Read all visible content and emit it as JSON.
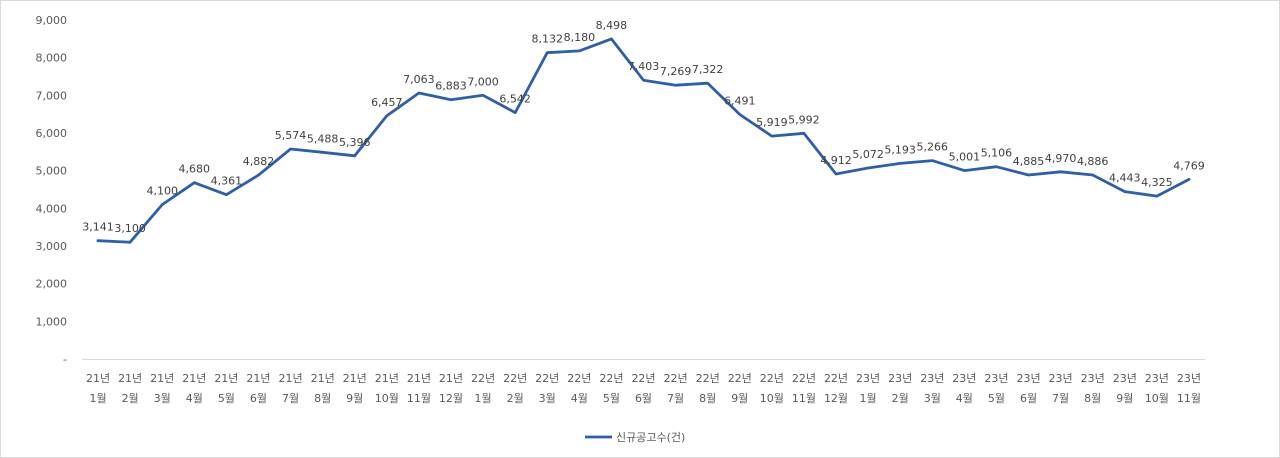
{
  "chart_data": {
    "type": "line",
    "title": "",
    "xlabel": "",
    "ylabel": "",
    "ylim": [
      0,
      9000
    ],
    "yticks": [
      0,
      1000,
      2000,
      3000,
      4000,
      5000,
      6000,
      7000,
      8000,
      9000
    ],
    "ytick_labels": [
      "-",
      "1,000",
      "2,000",
      "3,000",
      "4,000",
      "5,000",
      "6,000",
      "7,000",
      "8,000",
      "9,000"
    ],
    "grid": false,
    "legend_position": "bottom",
    "categories": [
      [
        "21년",
        "1월"
      ],
      [
        "21년",
        "2월"
      ],
      [
        "21년",
        "3월"
      ],
      [
        "21년",
        "4월"
      ],
      [
        "21년",
        "5월"
      ],
      [
        "21년",
        "6월"
      ],
      [
        "21년",
        "7월"
      ],
      [
        "21년",
        "8월"
      ],
      [
        "21년",
        "9월"
      ],
      [
        "21년",
        "10월"
      ],
      [
        "21년",
        "11월"
      ],
      [
        "21년",
        "12월"
      ],
      [
        "22년",
        "1월"
      ],
      [
        "22년",
        "2월"
      ],
      [
        "22년",
        "3월"
      ],
      [
        "22년",
        "4월"
      ],
      [
        "22년",
        "5월"
      ],
      [
        "22년",
        "6월"
      ],
      [
        "22년",
        "7월"
      ],
      [
        "22년",
        "8월"
      ],
      [
        "22년",
        "9월"
      ],
      [
        "22년",
        "10월"
      ],
      [
        "22년",
        "11월"
      ],
      [
        "22년",
        "12월"
      ],
      [
        "23년",
        "1월"
      ],
      [
        "23년",
        "2월"
      ],
      [
        "23년",
        "3월"
      ],
      [
        "23년",
        "4월"
      ],
      [
        "23년",
        "5월"
      ],
      [
        "23년",
        "6월"
      ],
      [
        "23년",
        "7월"
      ],
      [
        "23년",
        "8월"
      ],
      [
        "23년",
        "9월"
      ],
      [
        "23년",
        "10월"
      ],
      [
        "23년",
        "11월"
      ]
    ],
    "series": [
      {
        "name": "신규공고수(건)",
        "color": "#2e5fa8",
        "values": [
          3141,
          3100,
          4100,
          4680,
          4361,
          4882,
          5574,
          5488,
          5396,
          6457,
          7063,
          6883,
          7000,
          6542,
          8132,
          8180,
          8498,
          7403,
          7269,
          7322,
          6491,
          5919,
          5992,
          4912,
          5072,
          5193,
          5266,
          5001,
          5106,
          4885,
          4970,
          4886,
          4443,
          4325,
          4769
        ],
        "data_labels": [
          "3,141",
          "3,100",
          "4,100",
          "4,680",
          "4,361",
          "4,882",
          "5,574",
          "5,488",
          "5,396",
          "6,457",
          "7,063",
          "6,883",
          "7,000",
          "6,542",
          "8,132",
          "8,180",
          "8,498",
          "7,403",
          "7,269",
          "7,322",
          "6,491",
          "5,919",
          "5,992",
          "4,912",
          "5,072",
          "5,193",
          "5,266",
          "5,001",
          "5,106",
          "4,885",
          "4,970",
          "4,886",
          "4,443",
          "4,325",
          "4,769"
        ]
      }
    ],
    "axis_color": "#d9d9d9"
  }
}
